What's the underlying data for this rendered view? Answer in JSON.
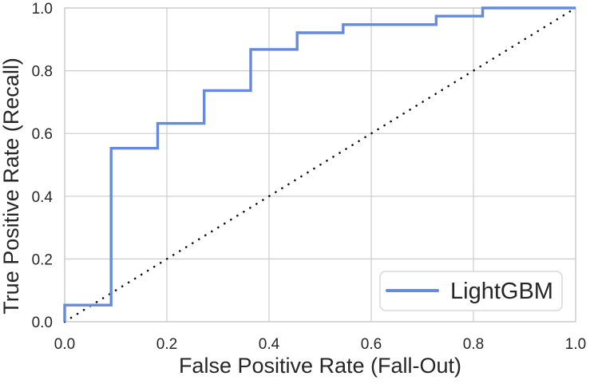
{
  "chart_data": {
    "type": "line",
    "subtype": "roc-curve-step",
    "title": "",
    "xlabel": "False Positive Rate (Fall-Out)",
    "ylabel": "True Positive Rate (Recall)",
    "xlim": [
      0.0,
      1.0
    ],
    "ylim": [
      0.0,
      1.0
    ],
    "grid": true,
    "x_ticks": [
      0.0,
      0.2,
      0.4,
      0.6,
      0.8,
      1.0
    ],
    "y_ticks": [
      0.0,
      0.2,
      0.4,
      0.6,
      0.8,
      1.0
    ],
    "tick_decimals": 1,
    "legend": {
      "position": "lower-right",
      "entries": [
        {
          "label": "LightGBM",
          "color": "#668ade"
        }
      ]
    },
    "series": [
      {
        "name": "chance-diagonal",
        "style": "dotted",
        "color": "#111111",
        "linewidth": 2.6,
        "points": [
          [
            0.0,
            0.0
          ],
          [
            1.0,
            1.0
          ]
        ]
      },
      {
        "name": "LightGBM",
        "style": "step-solid",
        "color": "#668ade",
        "linewidth": 3.4,
        "points": [
          [
            0.0,
            0.0
          ],
          [
            0.0,
            0.053
          ],
          [
            0.091,
            0.053
          ],
          [
            0.091,
            0.553
          ],
          [
            0.182,
            0.553
          ],
          [
            0.182,
            0.632
          ],
          [
            0.273,
            0.632
          ],
          [
            0.273,
            0.737
          ],
          [
            0.364,
            0.737
          ],
          [
            0.364,
            0.868
          ],
          [
            0.455,
            0.868
          ],
          [
            0.455,
            0.921
          ],
          [
            0.545,
            0.921
          ],
          [
            0.545,
            0.947
          ],
          [
            0.727,
            0.947
          ],
          [
            0.727,
            0.974
          ],
          [
            0.818,
            0.974
          ],
          [
            0.818,
            1.0
          ],
          [
            1.0,
            1.0
          ]
        ]
      }
    ],
    "colors": {
      "background": "#ffffff",
      "grid": "#cccccc",
      "spine": "#c9c9c9",
      "text": "#262626",
      "legend_border": "#d9d9d9"
    }
  }
}
